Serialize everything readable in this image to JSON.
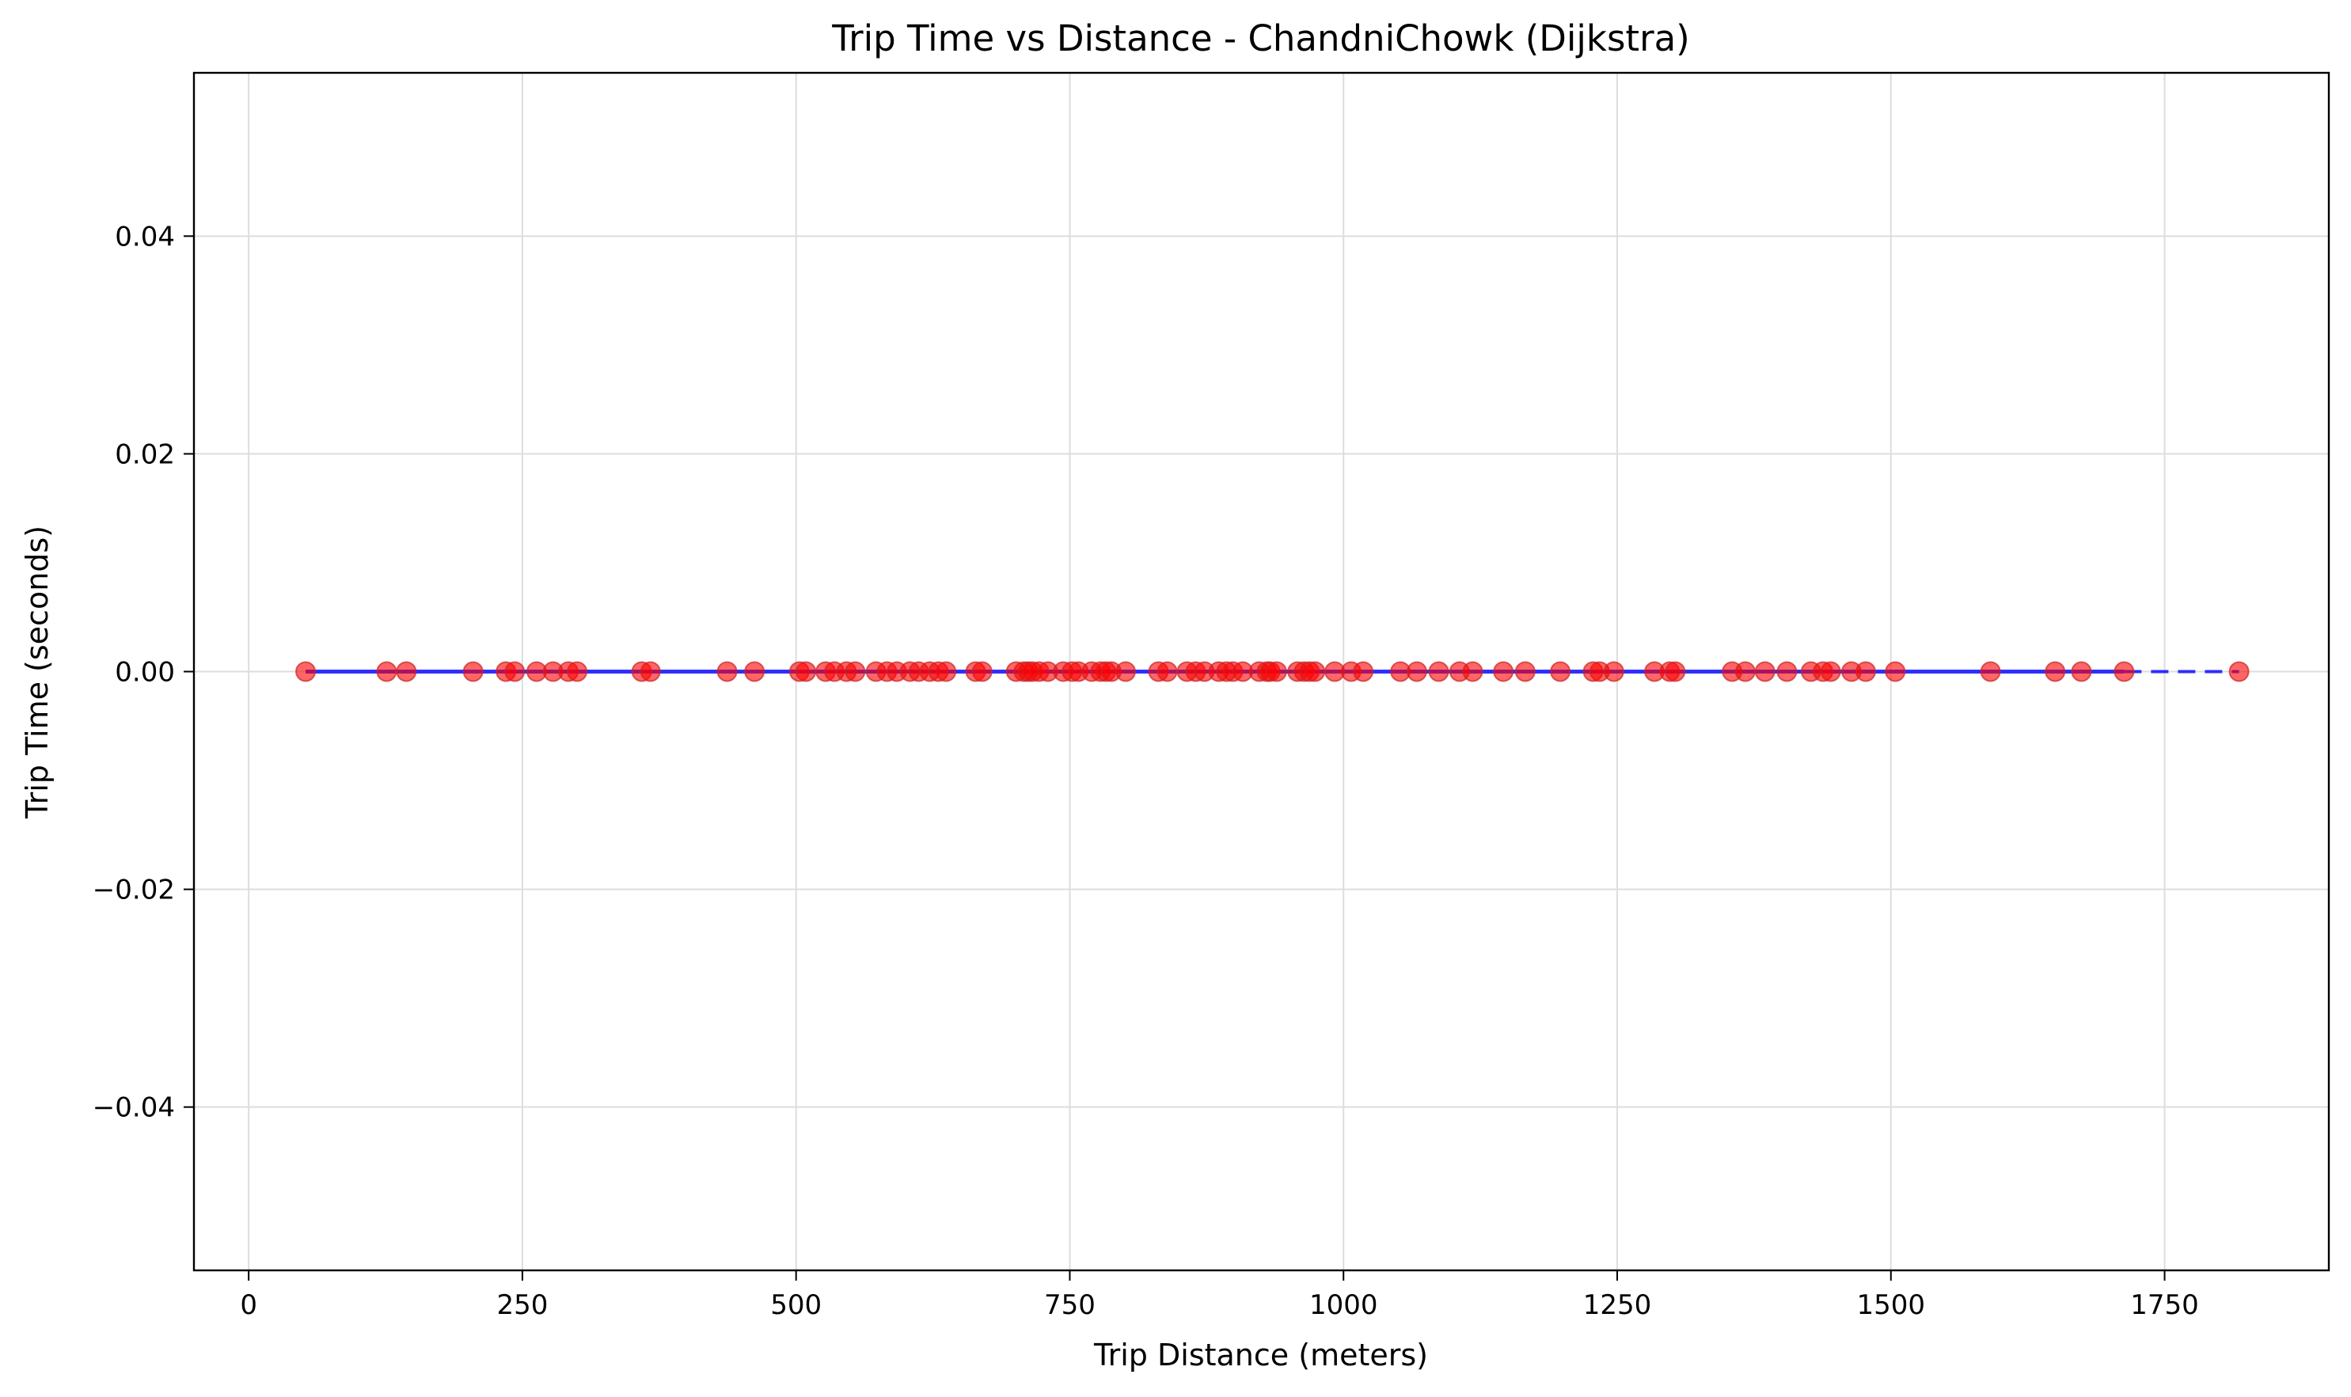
{
  "chart_data": {
    "type": "scatter",
    "title": "Trip Time vs Distance - ChandniChowk (Dijkstra)",
    "xlabel": "Trip Distance (meters)",
    "ylabel": "Trip Time (seconds)",
    "xlim": [
      -50,
      1900
    ],
    "ylim": [
      -0.055,
      0.055
    ],
    "xticks": [
      0,
      250,
      500,
      750,
      1000,
      1250,
      1500,
      1750
    ],
    "yticks": [
      -0.04,
      -0.02,
      0.0,
      0.02,
      0.04
    ],
    "xtick_labels": [
      "0",
      "250",
      "500",
      "750",
      "1000",
      "1250",
      "1500",
      "1750"
    ],
    "ytick_labels": [
      "−0.04",
      "−0.02",
      "0.00",
      "0.02",
      "0.04"
    ],
    "grid": true,
    "point_color": "#ff0000",
    "point_edge_color": "#cc2222",
    "trend_color": "#0000ff",
    "series": [
      {
        "x": [
          52,
          126,
          144,
          205,
          235,
          243,
          263,
          278,
          292,
          300,
          359,
          367,
          437,
          462,
          503,
          509,
          527,
          535,
          546,
          554,
          573,
          583,
          592,
          604,
          612,
          622,
          630,
          637,
          664,
          670,
          701,
          708,
          712,
          716,
          722,
          730,
          744,
          752,
          758,
          770,
          778,
          783,
          788,
          801,
          831,
          839,
          857,
          865,
          873,
          886,
          893,
          899,
          908,
          923,
          930,
          933,
          939,
          958,
          964,
          969,
          974,
          992,
          1007,
          1018,
          1052,
          1067,
          1087,
          1106,
          1118,
          1146,
          1166,
          1198,
          1228,
          1234,
          1247,
          1284,
          1298,
          1303,
          1355,
          1367,
          1385,
          1405,
          1427,
          1438,
          1445,
          1464,
          1477,
          1504,
          1591,
          1650,
          1674,
          1713,
          1818
        ],
        "y": [
          0,
          0,
          0,
          0,
          0,
          0,
          0,
          0,
          0,
          0,
          0,
          0,
          0,
          0,
          0,
          0,
          0,
          0,
          0,
          0,
          0,
          0,
          0,
          0,
          0,
          0,
          0,
          0,
          0,
          0,
          0,
          0,
          0,
          0,
          0,
          0,
          0,
          0,
          0,
          0,
          0,
          0,
          0,
          0,
          0,
          0,
          0,
          0,
          0,
          0,
          0,
          0,
          0,
          0,
          0,
          0,
          0,
          0,
          0,
          0,
          0,
          0,
          0,
          0,
          0,
          0,
          0,
          0,
          0,
          0,
          0,
          0,
          0,
          0,
          0,
          0,
          0,
          0,
          0,
          0,
          0,
          0,
          0,
          0,
          0,
          0,
          0,
          0,
          0,
          0,
          0,
          0,
          0
        ]
      }
    ],
    "trend_line": {
      "x": [
        52,
        1713
      ],
      "y": [
        0,
        0
      ]
    },
    "trend_dashed": {
      "x": [
        1713,
        1818
      ],
      "y": [
        0,
        0
      ]
    }
  }
}
